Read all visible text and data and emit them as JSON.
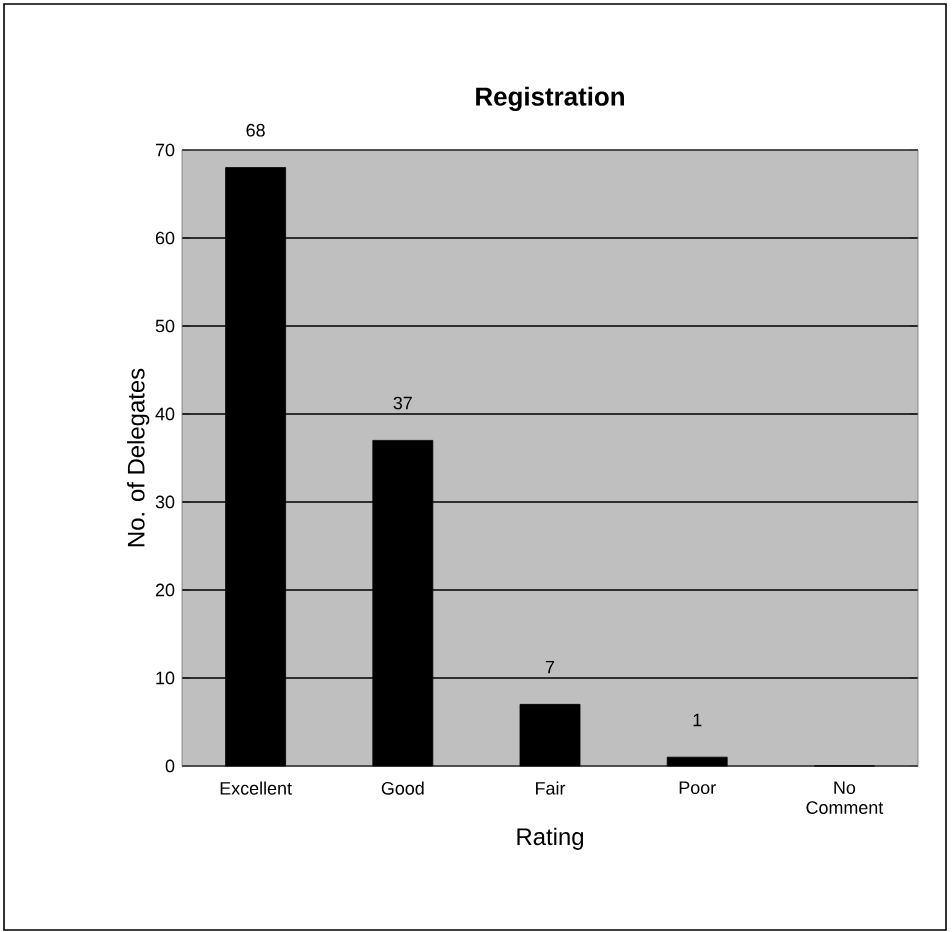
{
  "chart_data": {
    "type": "bar",
    "title": "Registration",
    "xlabel": "Rating",
    "ylabel": "No. of Delegates",
    "categories": [
      "Excellent",
      "Good",
      "Fair",
      "Poor",
      "No Comment"
    ],
    "values": [
      68,
      37,
      7,
      1,
      0
    ],
    "value_labels": [
      "68",
      "37",
      "7",
      "1",
      null
    ],
    "color": "#000000",
    "ylim": [
      0,
      70
    ],
    "yticks": [
      0,
      10,
      20,
      30,
      40,
      50,
      60,
      70
    ],
    "grid": "y"
  }
}
